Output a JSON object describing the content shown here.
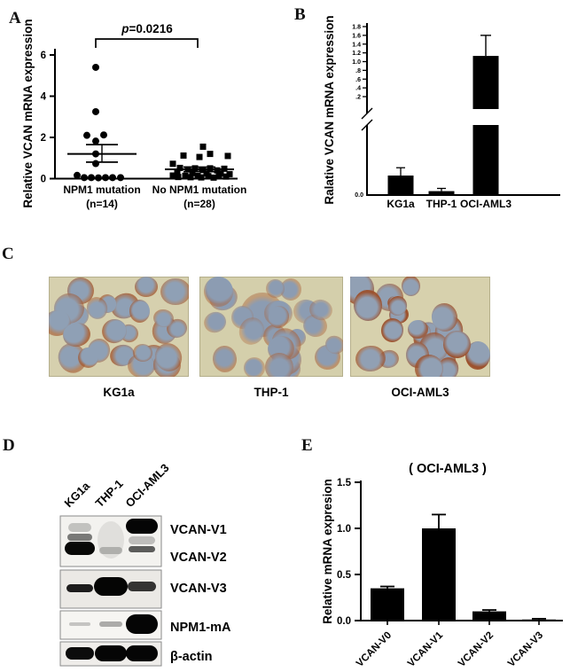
{
  "panel_a": {
    "letter": "A"
  },
  "panel_b": {
    "letter": "B"
  },
  "panel_c": {
    "letter": "C",
    "images": [
      {
        "label": "KG1a",
        "background": "#d6d0ae",
        "nucleus": "#8fa0b5",
        "stain": "#a2572f",
        "stain_strength": 0.8,
        "cells": 26,
        "seed": 3,
        "big_cell": false
      },
      {
        "label": "THP-1",
        "background": "#d4cfab",
        "nucleus": "#8c9cb2",
        "stain": "#a8613a",
        "stain_strength": 0.55,
        "cells": 24,
        "seed": 11,
        "big_cell": true
      },
      {
        "label": "OCI-AML3",
        "background": "#d7d1ad",
        "nucleus": "#91a0b4",
        "stain": "#9c4f2a",
        "stain_strength": 1.0,
        "cells": 22,
        "seed": 7,
        "big_cell": false
      }
    ]
  },
  "panel_d": {
    "letter": "D",
    "lanes": [
      "KG1a",
      "THP-1",
      "OCI-AML3"
    ],
    "blots": [
      {
        "labels": [
          "VCAN-V1",
          "VCAN-V2"
        ],
        "bands": [
          [
            0,
            8,
            10,
            0.2,
            26
          ],
          [
            0,
            20,
            8,
            0.5,
            28
          ],
          [
            0,
            29,
            15,
            0.97,
            34
          ],
          [
            1,
            6,
            42,
            0.08,
            30
          ],
          [
            1,
            35,
            8,
            0.22,
            26
          ],
          [
            2,
            3,
            17,
            0.98,
            36
          ],
          [
            2,
            23,
            9,
            0.22,
            30
          ],
          [
            2,
            34,
            7,
            0.62,
            30
          ]
        ]
      },
      {
        "labels": [
          "VCAN-V3"
        ],
        "bands": [
          [
            0,
            16,
            9,
            0.88,
            30
          ],
          [
            1,
            8,
            21,
            0.98,
            38
          ],
          [
            2,
            13,
            11,
            0.78,
            32
          ]
        ]
      },
      {
        "labels": [
          "NPM1-mA"
        ],
        "bands": [
          [
            0,
            13,
            4,
            0.2,
            24
          ],
          [
            1,
            12,
            6,
            0.3,
            26
          ],
          [
            2,
            4,
            22,
            0.98,
            36
          ]
        ]
      },
      {
        "labels": [
          "β-actin"
        ],
        "bands": [
          [
            0,
            6,
            14,
            0.95,
            32
          ],
          [
            1,
            4,
            18,
            0.98,
            36
          ],
          [
            2,
            4,
            18,
            0.98,
            36
          ]
        ]
      }
    ]
  },
  "panel_e": {
    "letter": "E"
  },
  "chart_data": [
    {
      "type": "scatter",
      "panel": "A",
      "ylabel": "Relative VCAN mRNA expression",
      "ylim": [
        0,
        6
      ],
      "yticks": [
        0,
        2,
        4,
        6
      ],
      "annotation": "p=0.0216",
      "annotation_parts": {
        "p": "p",
        "rest": "=0.0216"
      },
      "groups": [
        {
          "label": "NPM1 mutation",
          "sublabel": "(n=14)",
          "marker": "circle",
          "mean": 1.2,
          "error_high": 1.65,
          "error_low": 0.8,
          "points": [
            [
              -7,
              5.4
            ],
            [
              -7,
              3.25
            ],
            [
              -17,
              2.1
            ],
            [
              2,
              2.12
            ],
            [
              -7,
              1.82
            ],
            [
              -7,
              1.2
            ],
            [
              -7,
              0.73
            ],
            [
              -28,
              0.16
            ],
            [
              -20,
              0.05
            ],
            [
              -12,
              0.05
            ],
            [
              -4,
              0.04
            ],
            [
              4,
              0.05
            ],
            [
              12,
              0.05
            ],
            [
              21,
              0.05
            ]
          ]
        },
        {
          "label": "No NPM1 mutation",
          "sublabel": "(n=28)",
          "marker": "square",
          "mean": 0.45,
          "error_high": 0.56,
          "error_low": 0.34,
          "points": [
            [
              4,
              1.55
            ],
            [
              12,
              1.2
            ],
            [
              -18,
              1.12
            ],
            [
              32,
              1.1
            ],
            [
              0,
              1.05
            ],
            [
              -30,
              0.72
            ],
            [
              -22,
              0.52
            ],
            [
              -5,
              0.5
            ],
            [
              12,
              0.5
            ],
            [
              28,
              0.48
            ],
            [
              -13,
              0.45
            ],
            [
              4,
              0.42
            ],
            [
              20,
              0.4
            ],
            [
              -25,
              0.28
            ],
            [
              -8,
              0.27
            ],
            [
              8,
              0.25
            ],
            [
              24,
              0.25
            ],
            [
              34,
              0.22
            ],
            [
              -30,
              0.15
            ],
            [
              -16,
              0.14
            ],
            [
              -2,
              0.13
            ],
            [
              10,
              0.12
            ],
            [
              22,
              0.12
            ],
            [
              30,
              0.1
            ],
            [
              -24,
              0.08
            ],
            [
              -10,
              0.07
            ],
            [
              2,
              0.06
            ],
            [
              16,
              0.05
            ]
          ]
        }
      ]
    },
    {
      "type": "bar",
      "panel": "B",
      "ylabel": "Ralative VCAN mRNA expression",
      "categories": [
        "KG1a",
        "THP-1",
        "OCI-AML3"
      ],
      "values": [
        0.05,
        0.01,
        1.13
      ],
      "errors": [
        0.02,
        0.007,
        0.47
      ],
      "yticks_upper": [
        "1.8",
        "1.6",
        "1.4",
        "1.2",
        "1.0",
        ".8",
        ".6",
        ".4",
        ".2"
      ],
      "ytick_lower": "0.0",
      "axis_break": true,
      "upper_range": [
        0.2,
        1.8
      ],
      "bar_color": "#000000"
    },
    {
      "type": "bar",
      "panel": "E",
      "title": "( OCI-AML3 )",
      "ylabel": "Relative mRNA expresion",
      "categories": [
        "VCAN-V0",
        "VCAN-V1",
        "VCAN-V2",
        "VCAN-V3"
      ],
      "values": [
        0.35,
        1.0,
        0.1,
        0.012
      ],
      "errors": [
        0.02,
        0.15,
        0.015,
        0.008
      ],
      "yticks": [
        "0.0",
        "0.5",
        "1.0",
        "1.5"
      ],
      "ylim": [
        0,
        1.5
      ],
      "bar_color": "#000000"
    }
  ]
}
